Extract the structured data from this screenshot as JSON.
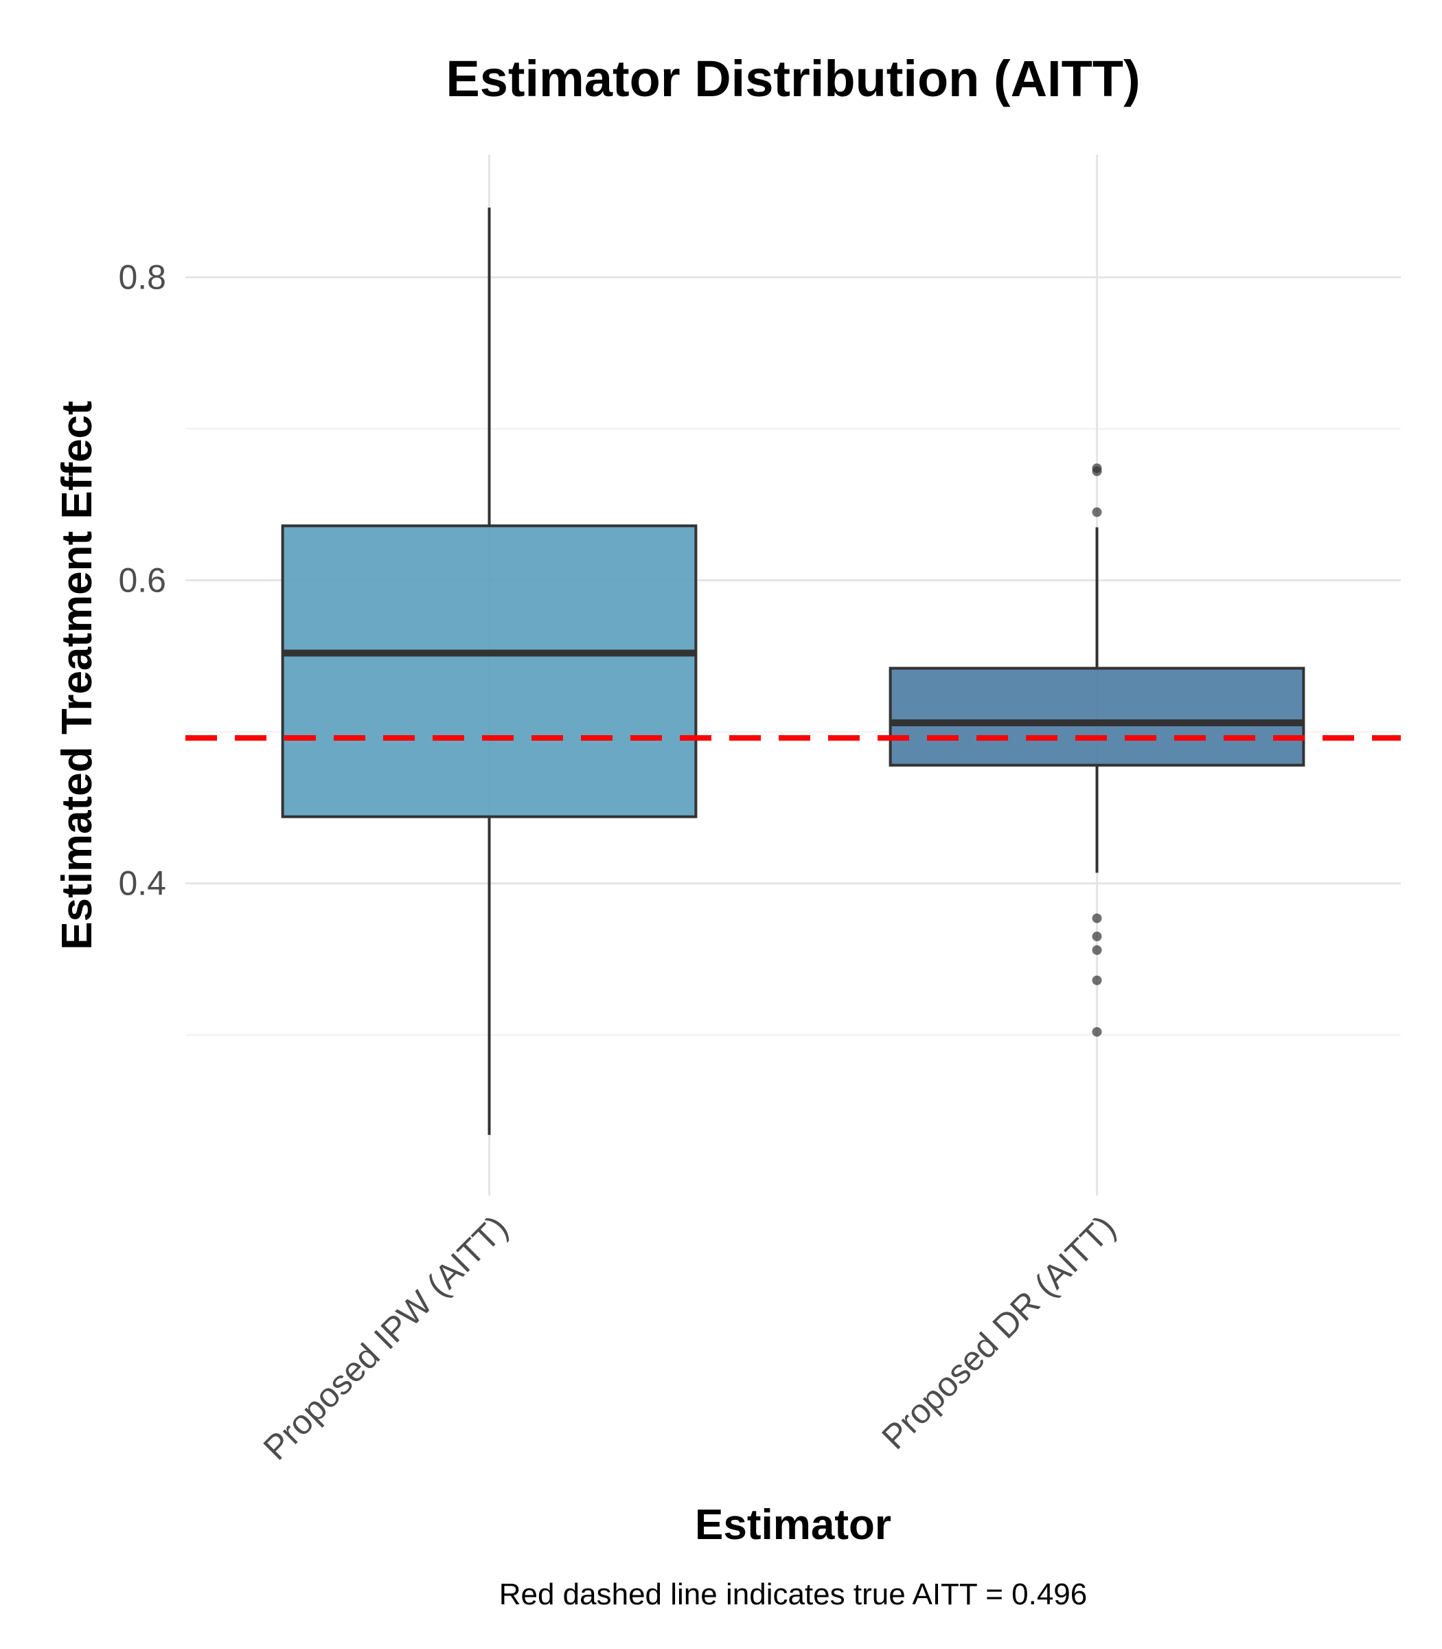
{
  "chart_data": {
    "type": "box",
    "title": "Estimator Distribution (AITT)",
    "xlabel": "Estimator",
    "ylabel": "Estimated Treatment Effect",
    "caption": "Red dashed line indicates true AITT = 0.496",
    "ylim": [
      0.194,
      0.881
    ],
    "y_ticks": [
      {
        "value": 0.4,
        "label": "0.4"
      },
      {
        "value": 0.6,
        "label": "0.6"
      },
      {
        "value": 0.8,
        "label": "0.8"
      }
    ],
    "y_minor_ticks": [
      0.3,
      0.5,
      0.7
    ],
    "reference_line": {
      "value": 0.496,
      "color": "#ff0000",
      "style": "dashed"
    },
    "grid": true,
    "series": [
      {
        "name": "Proposed IPW (AITT)",
        "color": "#5a9fbd",
        "whisker_low": 0.234,
        "q1": 0.444,
        "median": 0.552,
        "q3": 0.636,
        "whisker_high": 0.846,
        "outliers": []
      },
      {
        "name": "Proposed DR (AITT)",
        "color": "#4a7ba3",
        "whisker_low": 0.407,
        "q1": 0.478,
        "median": 0.506,
        "q3": 0.542,
        "whisker_high": 0.635,
        "outliers": [
          0.672,
          0.674,
          0.645,
          0.377,
          0.365,
          0.356,
          0.336,
          0.302
        ]
      }
    ]
  }
}
